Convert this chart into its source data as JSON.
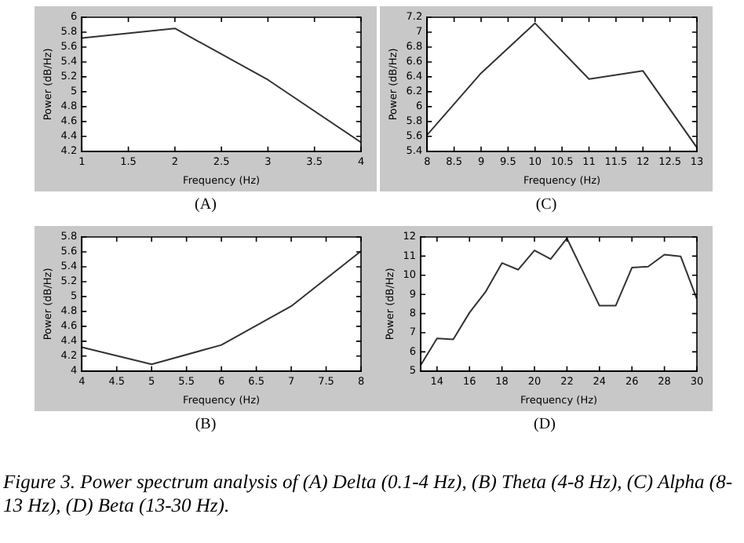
{
  "chart_data": [
    {
      "type": "line",
      "xlabel": "Frequency (Hz)",
      "ylabel": "Power (dB/Hz)",
      "annotations": [
        "(A)"
      ],
      "x": [
        1,
        2,
        3,
        4
      ],
      "series": [
        {
          "color": "#333333",
          "values": [
            5.72,
            5.85,
            5.16,
            4.32
          ]
        }
      ],
      "xlim": [
        1,
        4
      ],
      "xticks": [
        1,
        1.5,
        2,
        2.5,
        3,
        3.5,
        4
      ],
      "ylim": [
        4.2,
        6
      ],
      "yticks": [
        4.2,
        4.4,
        4.6,
        4.8,
        5,
        5.2,
        5.4,
        5.6,
        5.8,
        6
      ],
      "grid": false,
      "marker": "none",
      "line_style": "solid"
    },
    {
      "type": "line",
      "xlabel": "Frequency (Hz)",
      "ylabel": "Power (dB/Hz)",
      "annotations": [
        "(C)"
      ],
      "x": [
        8,
        9,
        10,
        11,
        12,
        13
      ],
      "series": [
        {
          "color": "#333333",
          "values": [
            5.62,
            6.45,
            7.12,
            6.37,
            6.48,
            5.45
          ]
        }
      ],
      "xlim": [
        8,
        13
      ],
      "xticks": [
        8,
        8.5,
        9,
        9.5,
        10,
        10.5,
        11,
        11.5,
        12,
        12.5,
        13
      ],
      "ylim": [
        5.4,
        7.2
      ],
      "yticks": [
        5.4,
        5.6,
        5.8,
        6,
        6.2,
        6.4,
        6.6,
        6.8,
        7,
        7.2
      ],
      "grid": false,
      "marker": "none",
      "line_style": "solid"
    },
    {
      "type": "line",
      "xlabel": "Frequency (Hz)",
      "ylabel": "Power (dB/Hz)",
      "annotations": [
        "(B)"
      ],
      "x": [
        4,
        5,
        6,
        7,
        8
      ],
      "series": [
        {
          "color": "#333333",
          "values": [
            4.32,
            4.09,
            4.35,
            4.87,
            5.61
          ]
        }
      ],
      "xlim": [
        4,
        8
      ],
      "xticks": [
        4,
        4.5,
        5,
        5.5,
        6,
        6.5,
        7,
        7.5,
        8
      ],
      "ylim": [
        4,
        5.8
      ],
      "yticks": [
        4,
        4.2,
        4.4,
        4.6,
        4.8,
        5,
        5.2,
        5.4,
        5.6,
        5.8
      ],
      "grid": false,
      "marker": "none",
      "line_style": "solid"
    },
    {
      "type": "line",
      "xlabel": "Frequency (Hz)",
      "ylabel": "Power (dB/Hz)",
      "annotations": [
        "(D)"
      ],
      "x": [
        13,
        14,
        15,
        16,
        17,
        18,
        19,
        20,
        21,
        22,
        23,
        24,
        25,
        26,
        27,
        28,
        29,
        30
      ],
      "series": [
        {
          "color": "#333333",
          "values": [
            5.31,
            6.7,
            6.65,
            8.05,
            9.15,
            10.64,
            10.29,
            11.3,
            10.85,
            11.93,
            10.17,
            8.41,
            8.41,
            10.4,
            10.45,
            11.08,
            10.99,
            8.76
          ]
        }
      ],
      "xlim": [
        13,
        30
      ],
      "xticks": [
        14,
        16,
        18,
        20,
        22,
        24,
        26,
        28,
        30
      ],
      "ylim": [
        5,
        12
      ],
      "yticks": [
        5,
        6,
        7,
        8,
        9,
        10,
        11,
        12
      ],
      "grid": false,
      "marker": "none",
      "line_style": "solid"
    },
    {
      "type": "other",
      "annotations": [
        "Figure 3. Power spectrum analysis of (A) Delta (0.1-4 Hz), (B) Theta (4-8 Hz), (C) Alpha (8-13 Hz), (D) Beta (13-30 Hz)."
      ]
    }
  ]
}
